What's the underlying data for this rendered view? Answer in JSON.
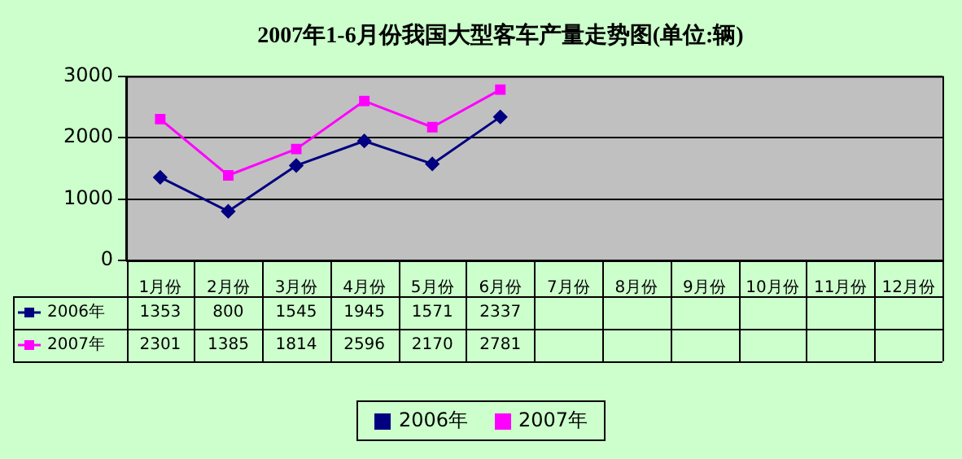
{
  "chart_data": {
    "type": "line",
    "title": "2007年1-6月份我国大型客车产量走势图(单位:辆)",
    "categories": [
      "1月份",
      "2月份",
      "3月份",
      "4月份",
      "5月份",
      "6月份",
      "7月份",
      "8月份",
      "9月份",
      "10月份",
      "11月份",
      "12月份"
    ],
    "series": [
      {
        "name": "2006年",
        "color": "#000080",
        "marker": "diamond",
        "values": [
          1353,
          800,
          1545,
          1945,
          1571,
          2337,
          null,
          null,
          null,
          null,
          null,
          null
        ]
      },
      {
        "name": "2007年",
        "color": "#ff00ff",
        "marker": "square",
        "values": [
          2301,
          1385,
          1814,
          2596,
          2170,
          2781,
          null,
          null,
          null,
          null,
          null,
          null
        ]
      }
    ],
    "ylim": [
      0,
      3000
    ],
    "yticks": [
      0,
      1000,
      2000,
      3000
    ],
    "grid": "y",
    "legend": "bottom",
    "data_labels": true,
    "line_style": "solid"
  }
}
